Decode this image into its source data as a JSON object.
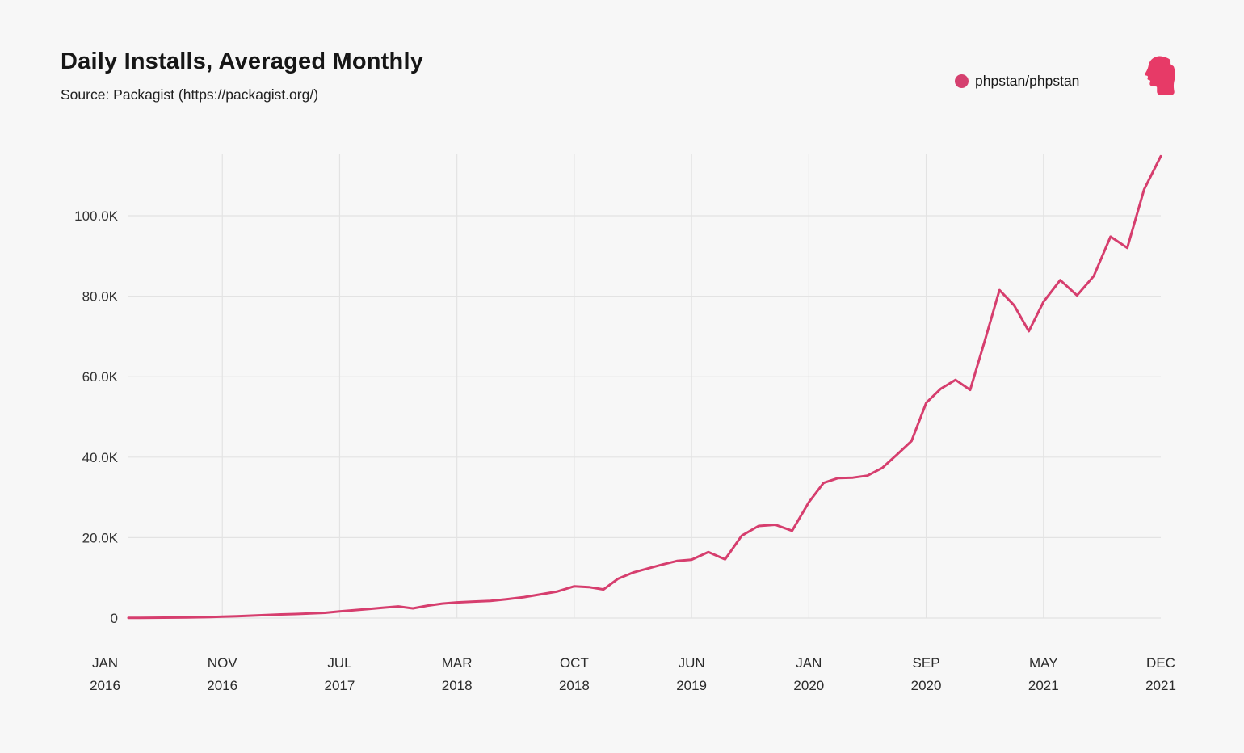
{
  "header": {
    "title": "Daily Installs, Averaged Monthly",
    "source": "Source: Packagist (https://packagist.org/)"
  },
  "legend": {
    "label": "phpstan/phpstan",
    "dot_color": "#d5406f"
  },
  "logo": {
    "name": "phpstan-head-logo",
    "color": "#e73a67"
  },
  "chart_data": {
    "type": "line",
    "title": "Daily Installs, Averaged Monthly",
    "series_name": "phpstan/phpstan",
    "line_color": "#d63e6e",
    "grid_color": "#e3e3e3",
    "ylabel": "",
    "xlabel": "",
    "ylim": [
      0,
      115500
    ],
    "grid": true,
    "legend_position": "top-right",
    "y_ticks": [
      {
        "label": "0",
        "value": 0
      },
      {
        "label": "20.0K",
        "value": 20000
      },
      {
        "label": "40.0K",
        "value": 40000
      },
      {
        "label": "60.0K",
        "value": 60000
      },
      {
        "label": "80.0K",
        "value": 80000
      },
      {
        "label": "100.0K",
        "value": 100000
      }
    ],
    "x_ticks": [
      {
        "label": "JAN",
        "year": "2016",
        "month_index": 0,
        "gridline": false
      },
      {
        "label": "NOV",
        "year": "2016",
        "month_index": 10,
        "gridline": true
      },
      {
        "label": "JUL",
        "year": "2017",
        "month_index": 18,
        "gridline": true
      },
      {
        "label": "MAR",
        "year": "2018",
        "month_index": 26,
        "gridline": true
      },
      {
        "label": "OCT",
        "year": "2018",
        "month_index": 33,
        "gridline": true
      },
      {
        "label": "JUN",
        "year": "2019",
        "month_index": 41,
        "gridline": true
      },
      {
        "label": "JAN",
        "year": "2020",
        "month_index": 48,
        "gridline": true
      },
      {
        "label": "SEP",
        "year": "2020",
        "month_index": 56,
        "gridline": true
      },
      {
        "label": "MAY",
        "year": "2021",
        "month_index": 64,
        "gridline": true
      },
      {
        "label": "DEC",
        "year": "2021",
        "month_index": 71,
        "gridline": false
      }
    ],
    "points": [
      [
        "JAN 2016",
        null
      ],
      [
        "FEB 2016",
        null
      ],
      [
        "MAR 2016",
        50
      ],
      [
        "APR 2016",
        60
      ],
      [
        "MAY 2016",
        80
      ],
      [
        "JUN 2016",
        100
      ],
      [
        "JUL 2016",
        120
      ],
      [
        "AUG 2016",
        150
      ],
      [
        "SEP 2016",
        200
      ],
      [
        "OCT 2016",
        250
      ],
      [
        "NOV 2016",
        350
      ],
      [
        "DEC 2016",
        450
      ],
      [
        "JAN 2017",
        600
      ],
      [
        "FEB 2017",
        750
      ],
      [
        "MAR 2017",
        900
      ],
      [
        "APR 2017",
        1000
      ],
      [
        "MAY 2017",
        1150
      ],
      [
        "JUN 2017",
        1300
      ],
      [
        "JUL 2017",
        1650
      ],
      [
        "AUG 2017",
        1950
      ],
      [
        "SEP 2017",
        2250
      ],
      [
        "OCT 2017",
        2600
      ],
      [
        "NOV 2017",
        2900
      ],
      [
        "DEC 2017",
        2400
      ],
      [
        "JAN 2018",
        3100
      ],
      [
        "FEB 2018",
        3600
      ],
      [
        "MAR 2018",
        3900
      ],
      [
        "APR 2018",
        4100
      ],
      [
        "MAY 2018",
        4250
      ],
      [
        "JUN 2018",
        4700
      ],
      [
        "JUL 2018",
        5200
      ],
      [
        "AUG 2018",
        5900
      ],
      [
        "SEP 2018",
        6600
      ],
      [
        "OCT 2018",
        7900
      ],
      [
        "NOV 2018",
        7700
      ],
      [
        "DEC 2018",
        7100
      ],
      [
        "JAN 2019",
        9800
      ],
      [
        "FEB 2019",
        11300
      ],
      [
        "MAR 2019",
        12300
      ],
      [
        "APR 2019",
        13300
      ],
      [
        "MAY 2019",
        14200
      ],
      [
        "JUN 2019",
        14500
      ],
      [
        "JUL 2019",
        16400
      ],
      [
        "AUG 2019",
        14600
      ],
      [
        "SEP 2019",
        20500
      ],
      [
        "OCT 2019",
        22900
      ],
      [
        "NOV 2019",
        23200
      ],
      [
        "DEC 2019",
        21700
      ],
      [
        "JAN 2020",
        28800
      ],
      [
        "FEB 2020",
        33600
      ],
      [
        "MAR 2020",
        34800
      ],
      [
        "APR 2020",
        34900
      ],
      [
        "MAY 2020",
        35400
      ],
      [
        "JUN 2020",
        37300
      ],
      [
        "JUL 2020",
        40600
      ],
      [
        "AUG 2020",
        44000
      ],
      [
        "SEP 2020",
        53500
      ],
      [
        "OCT 2020",
        57000
      ],
      [
        "NOV 2020",
        59200
      ],
      [
        "DEC 2020",
        56700
      ],
      [
        "JAN 2021",
        69000
      ],
      [
        "FEB 2021",
        81500
      ],
      [
        "MAR 2021",
        77700
      ],
      [
        "APR 2021",
        71300
      ],
      [
        "MAY 2021",
        78600
      ],
      [
        "JUN 2021",
        84000
      ],
      [
        "JUL 2021",
        80200
      ],
      [
        "AUG 2021",
        85000
      ],
      [
        "SEP 2021",
        94800
      ],
      [
        "OCT 2021",
        92000
      ],
      [
        "NOV 2021",
        106500
      ],
      [
        "DEC 2021",
        114800
      ]
    ]
  }
}
